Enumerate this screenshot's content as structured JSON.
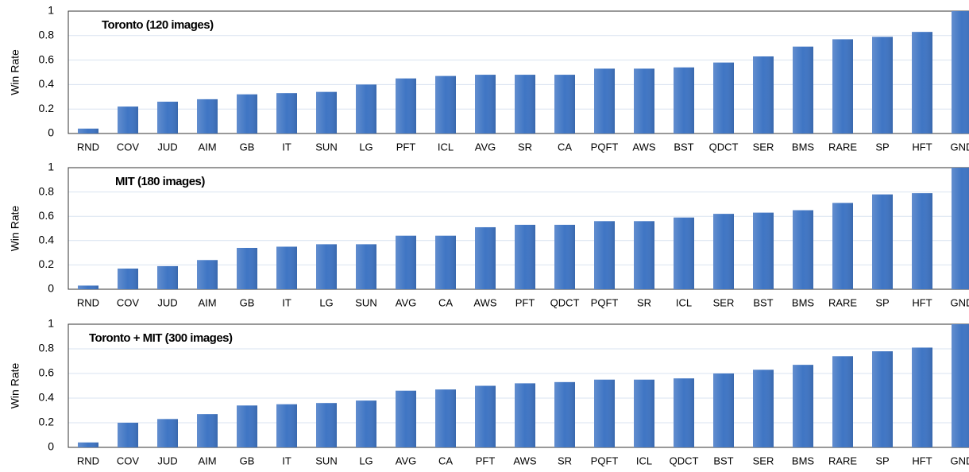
{
  "chart_data": [
    {
      "type": "bar",
      "title": "Toronto (120 images)",
      "ylabel": "Win Rate",
      "categories": [
        "RND",
        "COV",
        "JUD",
        "AIM",
        "GB",
        "IT",
        "SUN",
        "LG",
        "PFT",
        "ICL",
        "AVG",
        "SR",
        "CA",
        "PQFT",
        "AWS",
        "BST",
        "QDCT",
        "SER",
        "BMS",
        "RARE",
        "SP",
        "HFT",
        "GND"
      ],
      "values": [
        0.04,
        0.22,
        0.26,
        0.28,
        0.32,
        0.33,
        0.34,
        0.4,
        0.45,
        0.47,
        0.48,
        0.48,
        0.48,
        0.53,
        0.53,
        0.54,
        0.58,
        0.63,
        0.71,
        0.77,
        0.79,
        0.83,
        1.0
      ],
      "color": "#3f75c4",
      "ylim": [
        0,
        1
      ],
      "yticks": [
        0,
        0.2,
        0.4,
        0.6,
        0.8,
        1
      ],
      "grid": true
    },
    {
      "type": "bar",
      "title": "MIT (180 images)",
      "ylabel": "Win Rate",
      "categories": [
        "RND",
        "COV",
        "JUD",
        "AIM",
        "GB",
        "IT",
        "LG",
        "SUN",
        "AVG",
        "CA",
        "AWS",
        "PFT",
        "QDCT",
        "PQFT",
        "SR",
        "ICL",
        "SER",
        "BST",
        "BMS",
        "RARE",
        "SP",
        "HFT",
        "GND"
      ],
      "values": [
        0.03,
        0.17,
        0.19,
        0.24,
        0.34,
        0.35,
        0.37,
        0.37,
        0.44,
        0.44,
        0.51,
        0.53,
        0.53,
        0.56,
        0.56,
        0.59,
        0.62,
        0.63,
        0.65,
        0.71,
        0.78,
        0.79,
        1.0
      ],
      "color": "#3f75c4",
      "ylim": [
        0,
        1
      ],
      "yticks": [
        0,
        0.2,
        0.4,
        0.6,
        0.8,
        1
      ],
      "grid": true
    },
    {
      "type": "bar",
      "title": "Toronto + MIT (300 images)",
      "ylabel": "Win Rate",
      "categories": [
        "RND",
        "COV",
        "JUD",
        "AIM",
        "GB",
        "IT",
        "SUN",
        "LG",
        "AVG",
        "CA",
        "PFT",
        "AWS",
        "SR",
        "PQFT",
        "ICL",
        "QDCT",
        "BST",
        "SER",
        "BMS",
        "RARE",
        "SP",
        "HFT",
        "GND"
      ],
      "values": [
        0.04,
        0.2,
        0.23,
        0.27,
        0.34,
        0.35,
        0.36,
        0.38,
        0.46,
        0.47,
        0.5,
        0.52,
        0.53,
        0.55,
        0.55,
        0.56,
        0.6,
        0.63,
        0.67,
        0.74,
        0.78,
        0.81,
        1.0
      ],
      "color": "#3f75c4",
      "ylim": [
        0,
        1
      ],
      "yticks": [
        0,
        0.2,
        0.4,
        0.6,
        0.8,
        1
      ],
      "grid": true
    }
  ]
}
